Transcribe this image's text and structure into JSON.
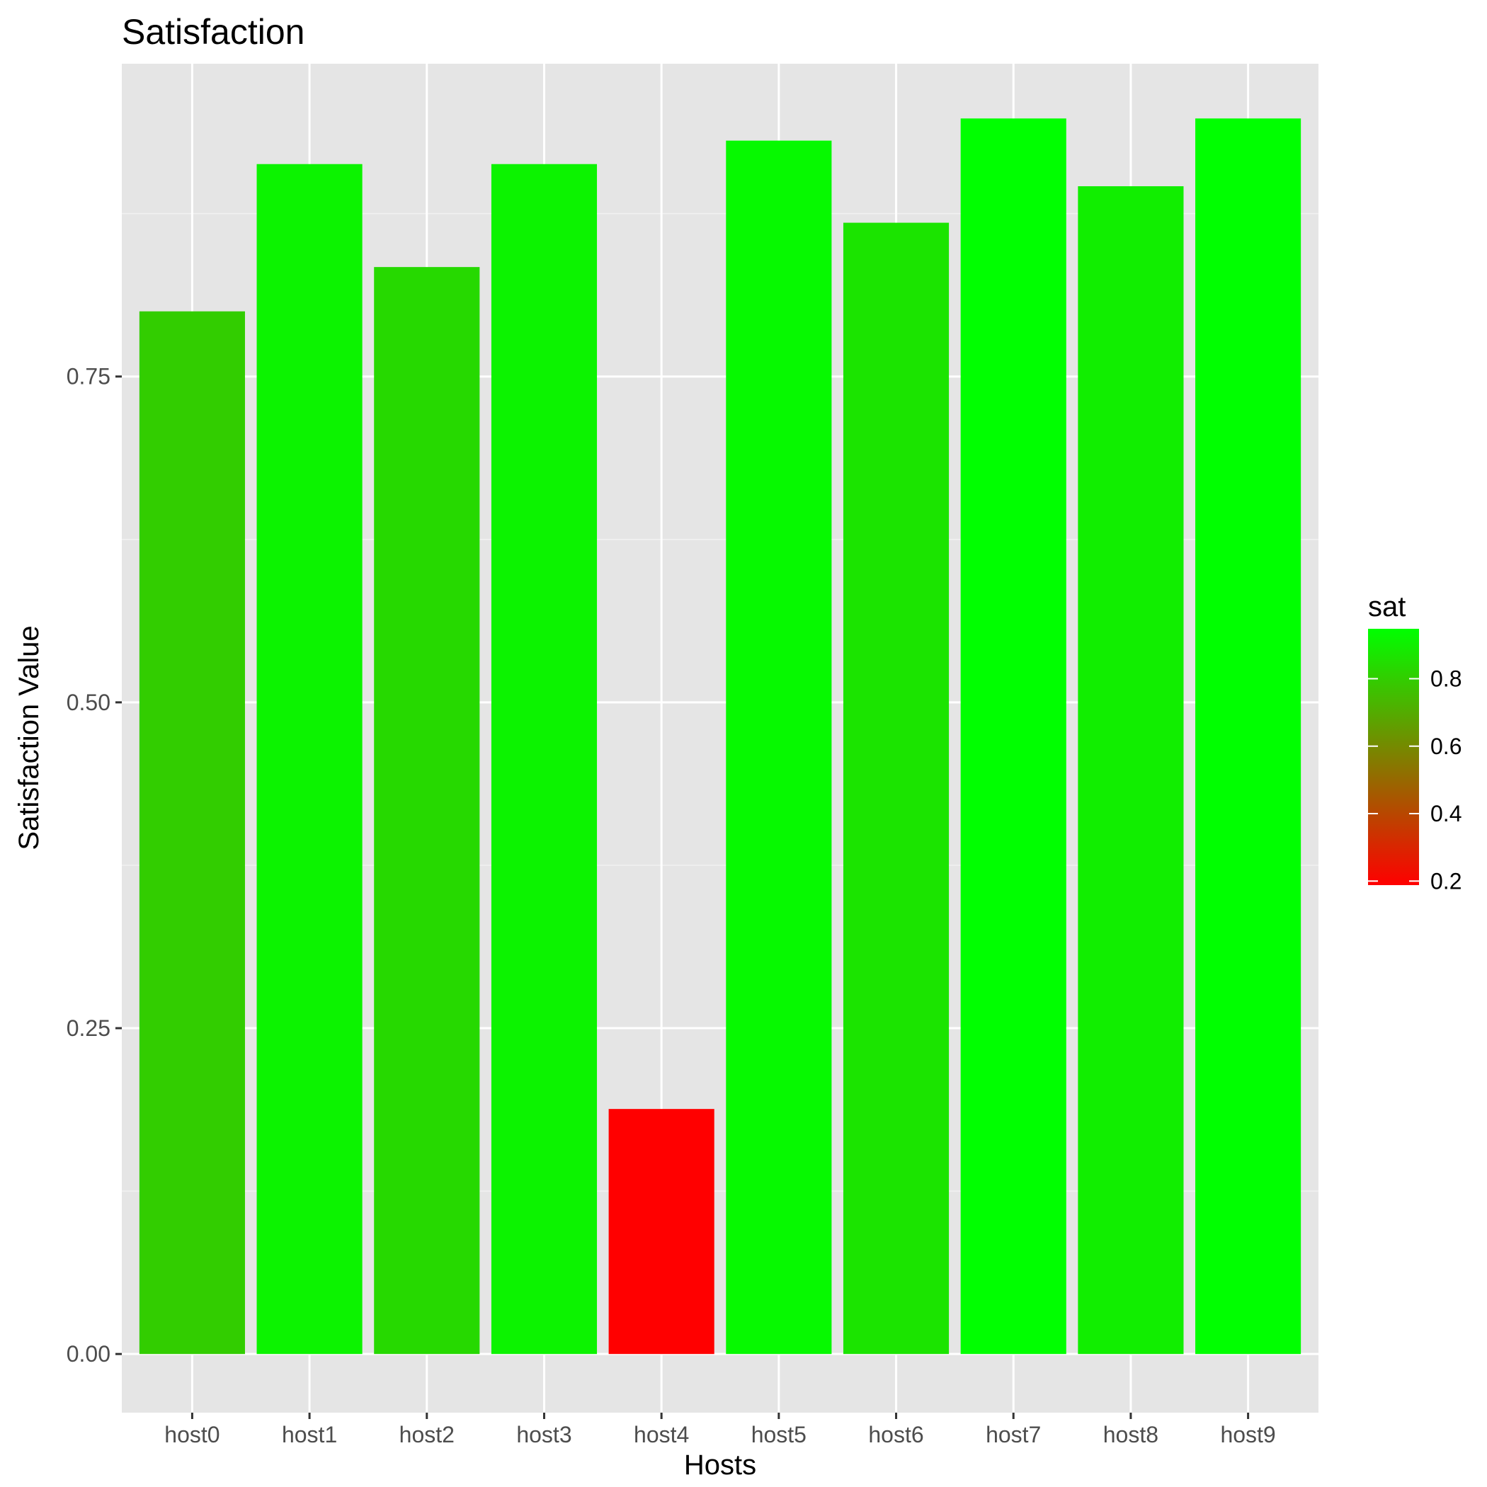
{
  "chart_data": {
    "type": "bar",
    "title": "Satisfaction",
    "xlabel": "Hosts",
    "ylabel": "Satisfaction Value",
    "categories": [
      "host0",
      "host1",
      "host2",
      "host3",
      "host4",
      "host5",
      "host6",
      "host7",
      "host8",
      "host9"
    ],
    "values": [
      0.8,
      0.913,
      0.834,
      0.913,
      0.188,
      0.931,
      0.868,
      0.948,
      0.896,
      0.948
    ],
    "ylim": [
      -0.045,
      0.99
    ],
    "yticks": [
      0.0,
      0.25,
      0.5,
      0.75
    ],
    "ytick_labels": [
      "0.00",
      "0.25",
      "0.50",
      "0.75"
    ],
    "grid": true,
    "legend": {
      "title": "sat",
      "position": "right",
      "type": "colorbar",
      "range": [
        0.188,
        0.948
      ],
      "ticks": [
        0.2,
        0.4,
        0.6,
        0.8
      ],
      "tick_labels": [
        "0.2",
        "0.4",
        "0.6",
        "0.8"
      ],
      "low_color": "#ff0000",
      "high_color": "#00ff00"
    }
  }
}
